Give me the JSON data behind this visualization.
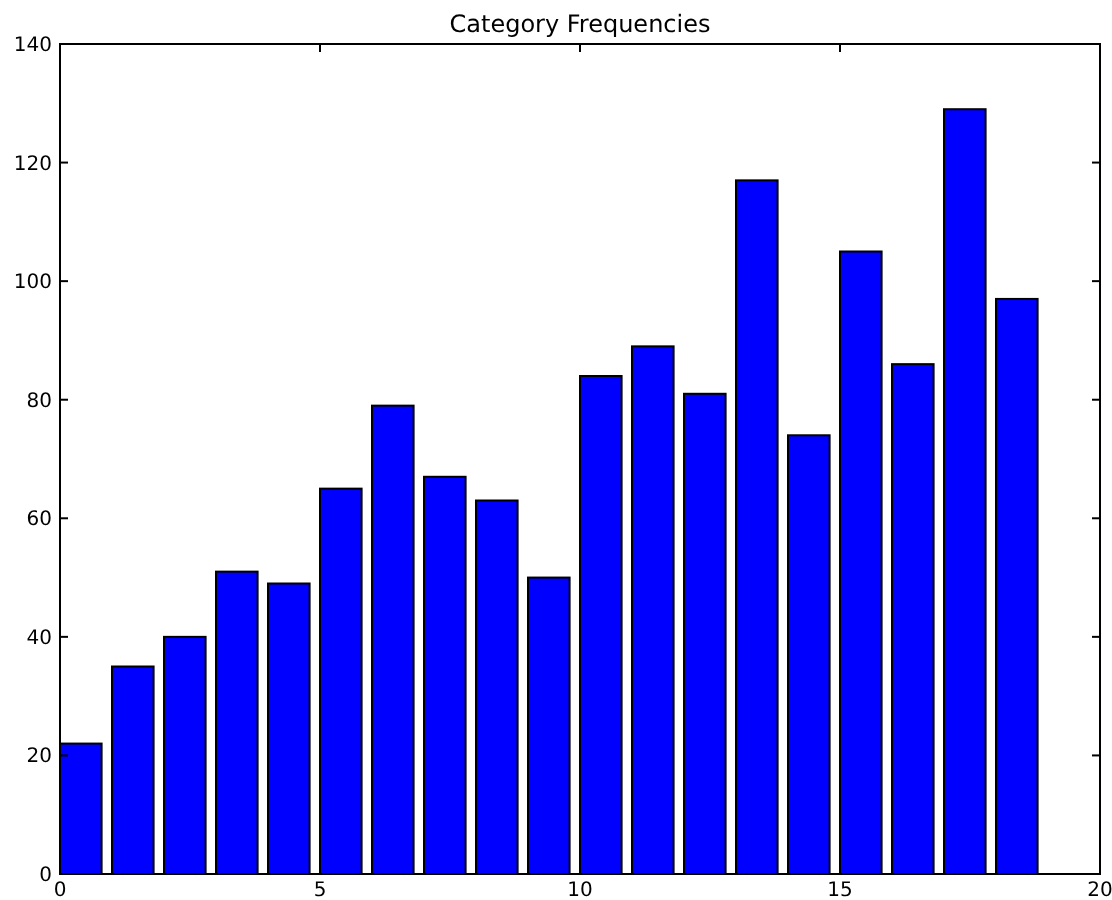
{
  "chart_data": {
    "type": "bar",
    "title": "Category Frequencies",
    "x": [
      0.4,
      1.4,
      2.4,
      3.4,
      4.4,
      5.4,
      6.4,
      7.4,
      8.4,
      9.4,
      10.4,
      11.4,
      12.4,
      13.4,
      14.4,
      15.4,
      16.4,
      17.4,
      18.4
    ],
    "values": [
      22,
      35,
      40,
      51,
      49,
      65,
      79,
      67,
      63,
      50,
      84,
      89,
      81,
      117,
      74,
      105,
      86,
      129,
      97
    ],
    "color": "#0000ff",
    "xlim": [
      0,
      20
    ],
    "xticks": [
      0,
      5,
      10,
      15,
      20
    ],
    "ylim": [
      0,
      140
    ],
    "yticks": [
      0,
      20,
      40,
      60,
      80,
      100,
      120,
      140
    ],
    "grid": false
  }
}
